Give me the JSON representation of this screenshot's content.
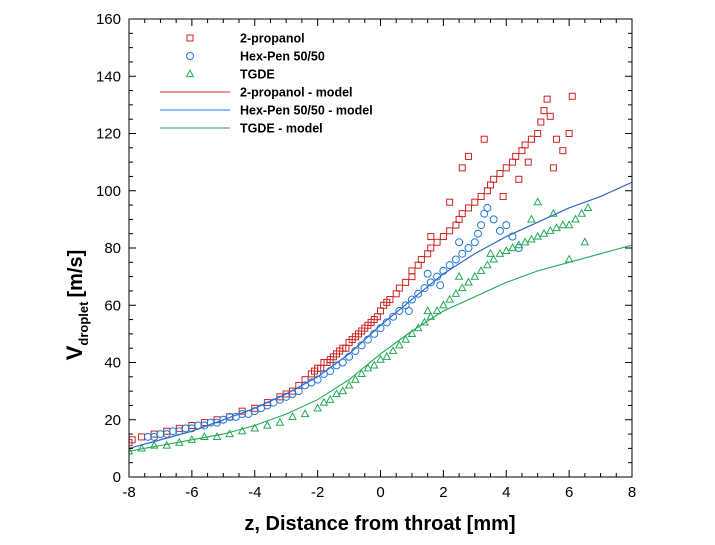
{
  "chart_data": {
    "type": "scatter",
    "title": "",
    "xlabel": "z, Distance from throat [mm]",
    "ylabel_main": "V",
    "ylabel_sub": "droplet",
    "ylabel_unit": "[m/s]",
    "xlim": [
      -8,
      8
    ],
    "ylim": [
      0,
      160
    ],
    "x_ticks": [
      -8,
      -6,
      -4,
      -2,
      0,
      2,
      4,
      6,
      8
    ],
    "y_ticks": [
      0,
      20,
      40,
      60,
      80,
      100,
      120,
      140,
      160
    ],
    "grid": false,
    "legend_position": "top-left",
    "series": [
      {
        "name": "2-propanol",
        "kind": "scatter",
        "marker": "square",
        "color": "#cc2222",
        "points": [
          [
            -8.0,
            12
          ],
          [
            -7.9,
            13
          ],
          [
            -7.6,
            14
          ],
          [
            -7.2,
            15
          ],
          [
            -6.8,
            16
          ],
          [
            -6.4,
            17
          ],
          [
            -6.0,
            18
          ],
          [
            -5.6,
            19
          ],
          [
            -5.2,
            20
          ],
          [
            -4.8,
            21
          ],
          [
            -4.4,
            23
          ],
          [
            -4.0,
            24
          ],
          [
            -3.6,
            26
          ],
          [
            -3.2,
            28
          ],
          [
            -3.0,
            29
          ],
          [
            -2.8,
            30
          ],
          [
            -2.6,
            32
          ],
          [
            -2.4,
            34
          ],
          [
            -2.2,
            36
          ],
          [
            -2.1,
            37
          ],
          [
            -2.0,
            38
          ],
          [
            -1.9,
            38
          ],
          [
            -1.8,
            40
          ],
          [
            -1.7,
            40
          ],
          [
            -1.6,
            41
          ],
          [
            -1.5,
            42
          ],
          [
            -1.4,
            43
          ],
          [
            -1.3,
            44
          ],
          [
            -1.2,
            45
          ],
          [
            -1.1,
            45
          ],
          [
            -1.0,
            47
          ],
          [
            -0.9,
            48
          ],
          [
            -0.8,
            49
          ],
          [
            -0.7,
            50
          ],
          [
            -0.6,
            51
          ],
          [
            -0.5,
            52
          ],
          [
            -0.4,
            53
          ],
          [
            -0.3,
            54
          ],
          [
            -0.2,
            55
          ],
          [
            -0.1,
            56
          ],
          [
            0.0,
            58
          ],
          [
            0.1,
            60
          ],
          [
            0.2,
            61
          ],
          [
            0.3,
            62
          ],
          [
            0.5,
            64
          ],
          [
            0.6,
            66
          ],
          [
            0.8,
            68
          ],
          [
            1.0,
            70
          ],
          [
            1.0,
            72
          ],
          [
            1.2,
            74
          ],
          [
            1.3,
            76
          ],
          [
            1.5,
            78
          ],
          [
            1.6,
            80
          ],
          [
            1.8,
            82
          ],
          [
            2.0,
            84
          ],
          [
            2.2,
            86
          ],
          [
            2.4,
            88
          ],
          [
            2.5,
            90
          ],
          [
            2.6,
            92
          ],
          [
            2.8,
            94
          ],
          [
            3.0,
            96
          ],
          [
            3.2,
            98
          ],
          [
            3.4,
            100
          ],
          [
            3.5,
            102
          ],
          [
            3.6,
            104
          ],
          [
            3.8,
            106
          ],
          [
            4.0,
            108
          ],
          [
            4.2,
            110
          ],
          [
            4.3,
            112
          ],
          [
            4.5,
            114
          ],
          [
            4.6,
            116
          ],
          [
            4.8,
            118
          ],
          [
            5.0,
            120
          ],
          [
            5.1,
            124
          ],
          [
            5.2,
            128
          ],
          [
            5.3,
            132
          ],
          [
            5.4,
            126
          ],
          [
            5.6,
            118
          ],
          [
            5.8,
            114
          ],
          [
            6.0,
            120
          ],
          [
            6.1,
            133
          ],
          [
            2.6,
            108
          ],
          [
            2.8,
            112
          ],
          [
            3.3,
            118
          ],
          [
            2.2,
            96
          ],
          [
            4.4,
            104
          ],
          [
            1.6,
            84
          ],
          [
            3.9,
            98
          ],
          [
            4.7,
            110
          ],
          [
            5.5,
            108
          ]
        ]
      },
      {
        "name": "Hex-Pen 50/50",
        "kind": "scatter",
        "marker": "circle",
        "color": "#2277dd",
        "points": [
          [
            -7.4,
            14
          ],
          [
            -7.2,
            14
          ],
          [
            -7.0,
            15
          ],
          [
            -6.8,
            15
          ],
          [
            -6.6,
            16
          ],
          [
            -6.4,
            16
          ],
          [
            -6.2,
            17
          ],
          [
            -6.0,
            17
          ],
          [
            -5.8,
            18
          ],
          [
            -5.6,
            18
          ],
          [
            -5.4,
            19
          ],
          [
            -5.2,
            19
          ],
          [
            -5.0,
            20
          ],
          [
            -4.8,
            21
          ],
          [
            -4.6,
            21
          ],
          [
            -4.4,
            22
          ],
          [
            -4.2,
            22
          ],
          [
            -4.0,
            23
          ],
          [
            -3.8,
            24
          ],
          [
            -3.6,
            25
          ],
          [
            -3.4,
            26
          ],
          [
            -3.2,
            27
          ],
          [
            -3.0,
            28
          ],
          [
            -2.8,
            29
          ],
          [
            -2.6,
            30
          ],
          [
            -2.4,
            32
          ],
          [
            -2.2,
            33
          ],
          [
            -2.0,
            34
          ],
          [
            -1.8,
            36
          ],
          [
            -1.6,
            37
          ],
          [
            -1.4,
            39
          ],
          [
            -1.2,
            40
          ],
          [
            -1.0,
            42
          ],
          [
            -0.8,
            44
          ],
          [
            -0.6,
            46
          ],
          [
            -0.4,
            48
          ],
          [
            -0.2,
            50
          ],
          [
            0.0,
            52
          ],
          [
            0.2,
            54
          ],
          [
            0.4,
            56
          ],
          [
            0.6,
            58
          ],
          [
            0.8,
            60
          ],
          [
            1.0,
            62
          ],
          [
            1.2,
            64
          ],
          [
            1.4,
            66
          ],
          [
            1.6,
            68
          ],
          [
            1.8,
            70
          ],
          [
            2.0,
            72
          ],
          [
            2.2,
            74
          ],
          [
            2.4,
            76
          ],
          [
            2.6,
            78
          ],
          [
            2.8,
            80
          ],
          [
            3.0,
            82
          ],
          [
            3.1,
            85
          ],
          [
            3.2,
            88
          ],
          [
            3.3,
            92
          ],
          [
            3.4,
            94
          ],
          [
            3.6,
            90
          ],
          [
            3.8,
            86
          ],
          [
            4.0,
            88
          ],
          [
            4.2,
            84
          ],
          [
            4.4,
            80
          ],
          [
            1.5,
            71
          ],
          [
            2.5,
            82
          ],
          [
            0.9,
            58
          ],
          [
            1.9,
            67
          ]
        ]
      },
      {
        "name": "TGDE",
        "kind": "scatter",
        "marker": "triangle",
        "color": "#22aa55",
        "points": [
          [
            -8.0,
            9
          ],
          [
            -7.6,
            10
          ],
          [
            -7.2,
            11
          ],
          [
            -6.8,
            11
          ],
          [
            -6.4,
            12
          ],
          [
            -6.0,
            13
          ],
          [
            -5.6,
            14
          ],
          [
            -5.2,
            14
          ],
          [
            -4.8,
            15
          ],
          [
            -4.4,
            16
          ],
          [
            -4.0,
            17
          ],
          [
            -3.6,
            18
          ],
          [
            -3.2,
            19
          ],
          [
            -2.8,
            21
          ],
          [
            -2.4,
            22
          ],
          [
            -2.0,
            24
          ],
          [
            -1.8,
            26
          ],
          [
            -1.6,
            27
          ],
          [
            -1.4,
            29
          ],
          [
            -1.2,
            30
          ],
          [
            -1.0,
            32
          ],
          [
            -0.8,
            34
          ],
          [
            -0.6,
            36
          ],
          [
            -0.4,
            38
          ],
          [
            -0.2,
            39
          ],
          [
            0.0,
            41
          ],
          [
            0.2,
            42
          ],
          [
            0.4,
            44
          ],
          [
            0.6,
            46
          ],
          [
            0.8,
            48
          ],
          [
            1.0,
            50
          ],
          [
            1.2,
            52
          ],
          [
            1.4,
            54
          ],
          [
            1.6,
            56
          ],
          [
            1.8,
            58
          ],
          [
            2.0,
            60
          ],
          [
            2.2,
            62
          ],
          [
            2.4,
            64
          ],
          [
            2.6,
            66
          ],
          [
            2.8,
            68
          ],
          [
            3.0,
            70
          ],
          [
            3.2,
            72
          ],
          [
            3.4,
            74
          ],
          [
            3.6,
            76
          ],
          [
            3.8,
            78
          ],
          [
            4.0,
            79
          ],
          [
            4.2,
            80
          ],
          [
            4.4,
            81
          ],
          [
            4.6,
            82
          ],
          [
            4.8,
            83
          ],
          [
            5.0,
            84
          ],
          [
            5.2,
            85
          ],
          [
            5.4,
            86
          ],
          [
            5.6,
            87
          ],
          [
            5.8,
            88
          ],
          [
            6.0,
            88
          ],
          [
            6.2,
            90
          ],
          [
            6.4,
            92
          ],
          [
            6.6,
            94
          ],
          [
            5.5,
            92
          ],
          [
            6.0,
            76
          ],
          [
            4.8,
            90
          ],
          [
            3.5,
            78
          ],
          [
            2.5,
            70
          ],
          [
            1.5,
            58
          ],
          [
            5.0,
            96
          ],
          [
            6.5,
            82
          ]
        ]
      },
      {
        "name": "2-propanol - model",
        "kind": "line",
        "color": "#cc2222",
        "x": [
          -8,
          -7,
          -6,
          -5,
          -4,
          -3,
          -2,
          -1,
          0,
          1,
          2,
          3,
          4,
          5,
          6,
          7,
          8
        ],
        "y": [
          10,
          13,
          16,
          20,
          24,
          29,
          35,
          43,
          53,
          62,
          71,
          78,
          84,
          89,
          94,
          98,
          103
        ]
      },
      {
        "name": "Hex-Pen 50/50 - model",
        "kind": "line",
        "color": "#2277dd",
        "x": [
          -8,
          -7,
          -6,
          -5,
          -4,
          -3,
          -2,
          -1,
          0,
          1,
          2,
          3,
          4,
          5,
          6,
          7,
          8
        ],
        "y": [
          10,
          13,
          16,
          20,
          24,
          29,
          35,
          43,
          53,
          62,
          71,
          78,
          84,
          89,
          94,
          98,
          103
        ]
      },
      {
        "name": "TGDE - model",
        "kind": "line",
        "color": "#22aa55",
        "x": [
          -8,
          -7,
          -6,
          -5,
          -4,
          -3,
          -2,
          -1,
          0,
          1,
          2,
          3,
          4,
          5,
          6,
          7,
          8
        ],
        "y": [
          9,
          11,
          13,
          15,
          18,
          22,
          27,
          34,
          43,
          51,
          58,
          63,
          68,
          72,
          75,
          78,
          81
        ]
      }
    ]
  }
}
